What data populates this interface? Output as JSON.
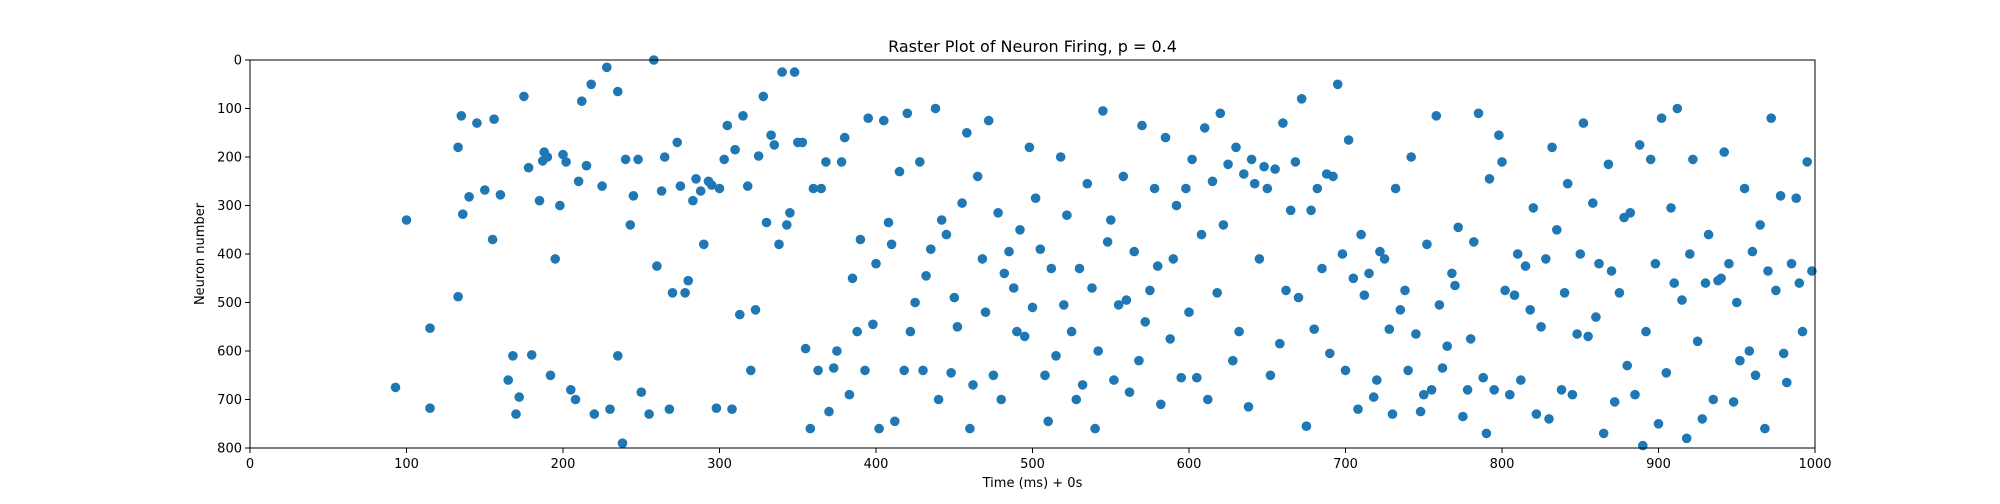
{
  "chart_data": {
    "type": "scatter",
    "title": "Raster Plot of Neuron Firing, p = 0.4",
    "xlabel": "Time (ms) + 0s",
    "ylabel": "Neuron number",
    "xlim": [
      0,
      1000
    ],
    "ylim": [
      800,
      0
    ],
    "y_inverted": true,
    "grid": false,
    "legend": "none",
    "marker_color": "#1f77b4",
    "xticks": [
      0,
      100,
      200,
      300,
      400,
      500,
      600,
      700,
      800,
      900,
      1000
    ],
    "yticks": [
      0,
      100,
      200,
      300,
      400,
      500,
      600,
      700,
      800
    ],
    "xtick_labels": [
      "0",
      "100",
      "200",
      "300",
      "400",
      "500",
      "600",
      "700",
      "800",
      "900",
      "1000"
    ],
    "ytick_labels": [
      "0",
      "100",
      "200",
      "300",
      "400",
      "500",
      "600",
      "700",
      "800"
    ],
    "points_x": [
      93,
      100,
      115,
      115,
      133,
      133,
      135,
      136,
      140,
      145,
      150,
      155,
      156,
      160,
      165,
      168,
      170,
      172,
      175,
      178,
      180,
      185,
      187,
      188,
      190,
      192,
      195,
      198,
      200,
      202,
      205,
      208,
      210,
      212,
      215,
      218,
      220,
      225,
      228,
      230,
      235,
      235,
      238,
      240,
      243,
      245,
      248,
      250,
      255,
      258,
      260,
      263,
      265,
      268,
      270,
      273,
      275,
      278,
      280,
      283,
      285,
      288,
      290,
      293,
      295,
      298,
      300,
      303,
      305,
      308,
      310,
      313,
      315,
      318,
      320,
      323,
      325,
      328,
      330,
      333,
      335,
      338,
      340,
      343,
      345,
      348,
      350,
      353,
      355,
      358,
      360,
      363,
      365,
      368,
      370,
      373,
      375,
      378,
      380,
      383,
      385,
      388,
      390,
      393,
      395,
      398,
      400,
      402,
      405,
      408,
      410,
      412,
      415,
      418,
      420,
      422,
      425,
      428,
      430,
      432,
      435,
      438,
      440,
      442,
      445,
      448,
      450,
      452,
      455,
      458,
      460,
      462,
      465,
      468,
      470,
      472,
      475,
      478,
      480,
      482,
      485,
      488,
      490,
      492,
      495,
      498,
      500,
      502,
      505,
      508,
      510,
      512,
      515,
      518,
      520,
      522,
      525,
      528,
      530,
      532,
      535,
      538,
      540,
      542,
      545,
      548,
      550,
      552,
      555,
      558,
      560,
      562,
      565,
      568,
      570,
      572,
      575,
      578,
      580,
      582,
      585,
      588,
      590,
      592,
      595,
      598,
      600,
      602,
      605,
      608,
      610,
      612,
      615,
      618,
      620,
      622,
      625,
      628,
      630,
      632,
      635,
      638,
      640,
      642,
      645,
      648,
      650,
      652,
      655,
      658,
      660,
      662,
      665,
      668,
      670,
      672,
      675,
      678,
      680,
      682,
      685,
      688,
      690,
      692,
      695,
      698,
      700,
      702,
      705,
      708,
      710,
      712,
      715,
      718,
      720,
      722,
      725,
      728,
      730,
      732,
      735,
      738,
      740,
      742,
      745,
      748,
      750,
      752,
      755,
      758,
      760,
      762,
      765,
      768,
      770,
      772,
      775,
      778,
      780,
      782,
      785,
      788,
      790,
      792,
      795,
      798,
      800,
      802,
      805,
      808,
      810,
      812,
      815,
      818,
      820,
      822,
      825,
      828,
      830,
      832,
      835,
      838,
      840,
      842,
      845,
      848,
      850,
      852,
      855,
      858,
      860,
      862,
      865,
      868,
      870,
      872,
      875,
      878,
      880,
      882,
      885,
      888,
      890,
      892,
      895,
      898,
      900,
      902,
      905,
      908,
      910,
      912,
      915,
      918,
      920,
      922,
      925,
      928,
      930,
      932,
      935,
      938,
      940,
      942,
      945,
      948,
      950,
      952,
      955,
      958,
      960,
      962,
      965,
      968,
      970,
      972,
      975,
      978,
      980,
      982,
      985,
      988,
      990,
      992,
      995,
      998
    ],
    "points_y": [
      675,
      330,
      553,
      718,
      180,
      488,
      115,
      318,
      282,
      130,
      268,
      370,
      122,
      278,
      660,
      610,
      730,
      695,
      75,
      222,
      608,
      290,
      208,
      190,
      200,
      650,
      410,
      300,
      195,
      210,
      680,
      700,
      250,
      85,
      218,
      50,
      730,
      260,
      15,
      720,
      610,
      65,
      790,
      205,
      340,
      280,
      205,
      685,
      730,
      0,
      425,
      270,
      200,
      720,
      480,
      170,
      260,
      480,
      455,
      290,
      245,
      270,
      380,
      250,
      258,
      718,
      265,
      205,
      135,
      720,
      185,
      525,
      115,
      260,
      640,
      515,
      198,
      75,
      335,
      155,
      175,
      380,
      25,
      340,
      315,
      25,
      170,
      170,
      595,
      760,
      265,
      640,
      265,
      210,
      725,
      635,
      600,
      210,
      160,
      690,
      450,
      560,
      370,
      640,
      120,
      545,
      420,
      760,
      125,
      335,
      380,
      745,
      230,
      640,
      110,
      560,
      500,
      210,
      640,
      445,
      390,
      100,
      700,
      330,
      360,
      645,
      490,
      550,
      295,
      150,
      760,
      670,
      240,
      410,
      520,
      125,
      650,
      315,
      700,
      440,
      395,
      470,
      560,
      350,
      570,
      180,
      510,
      285,
      390,
      650,
      745,
      430,
      610,
      200,
      505,
      320,
      560,
      700,
      430,
      670,
      255,
      470,
      760,
      600,
      105,
      375,
      330,
      660,
      505,
      240,
      495,
      685,
      395,
      620,
      135,
      540,
      475,
      265,
      425,
      710,
      160,
      575,
      410,
      300,
      655,
      265,
      520,
      205,
      655,
      360,
      140,
      700,
      250,
      480,
      110,
      340,
      215,
      620,
      180,
      560,
      235,
      715,
      205,
      255,
      410,
      220,
      265,
      650,
      225,
      585,
      130,
      475,
      310,
      210,
      490,
      80,
      755,
      310,
      555,
      265,
      430,
      235,
      605,
      240,
      50,
      400,
      640,
      165,
      450,
      720,
      360,
      485,
      440,
      695,
      660,
      395,
      410,
      555,
      730,
      265,
      515,
      475,
      640,
      200,
      565,
      725,
      690,
      380,
      680,
      115,
      505,
      635,
      590,
      440,
      465,
      345,
      735,
      680,
      575,
      375,
      110,
      655,
      770,
      245,
      680,
      155,
      210,
      475,
      690,
      485,
      400,
      660,
      425,
      515,
      305,
      730,
      550,
      410,
      740,
      180,
      350,
      680,
      480,
      255,
      690,
      565,
      400,
      130,
      570,
      295,
      530,
      420,
      770,
      215,
      435,
      705,
      480,
      325,
      630,
      315,
      690,
      175,
      795,
      560,
      205,
      420,
      750,
      120,
      645,
      305,
      460,
      100,
      495,
      780,
      400,
      205,
      580,
      740,
      460,
      360,
      700,
      455,
      450,
      190,
      420,
      705,
      500,
      620,
      265,
      600,
      395,
      650,
      340,
      760,
      435,
      120,
      475,
      280,
      605,
      665,
      420,
      285,
      460,
      560,
      210,
      435
    ]
  }
}
